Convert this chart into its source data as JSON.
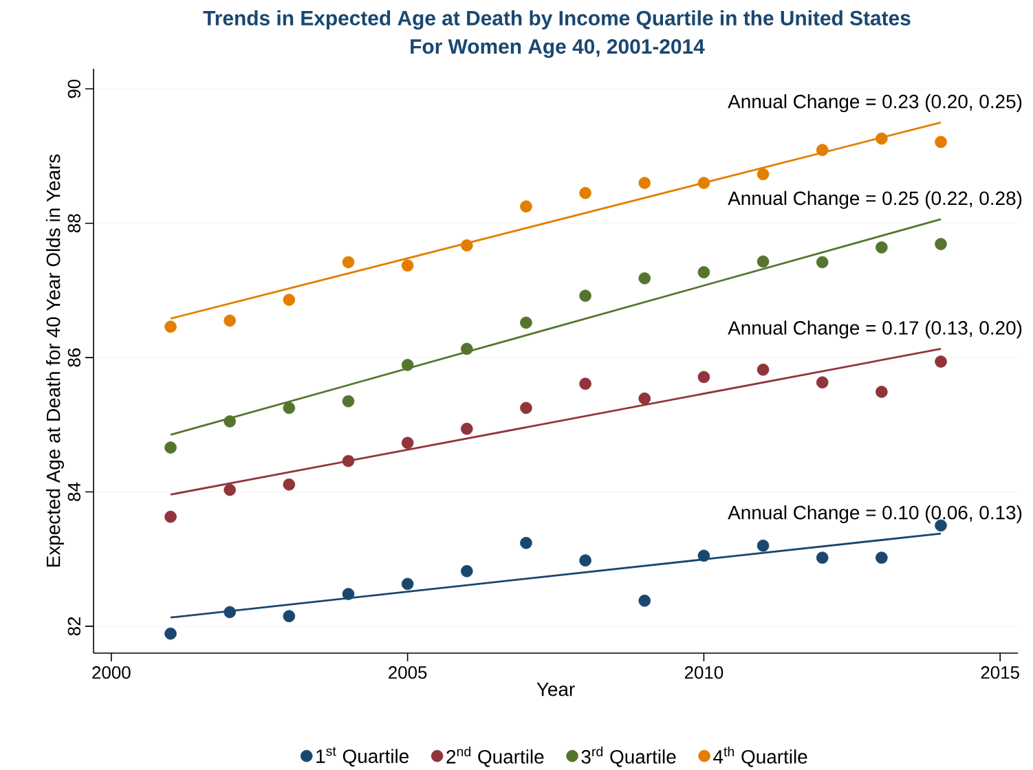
{
  "chart_data": {
    "type": "scatter",
    "title": "Trends in Expected Age at Death by Income Quartile in the United States",
    "subtitle": "For Women Age 40, 2001-2014",
    "xlabel": "Year",
    "ylabel": "Expected Age at Death for 40 Year Olds in Years",
    "xlim": [
      1999.7,
      2015.3
    ],
    "xticks": [
      2000,
      2005,
      2010,
      2015
    ],
    "ylim": [
      81.6,
      90.3
    ],
    "yticks": [
      82,
      84,
      86,
      88,
      90
    ],
    "grid": "y",
    "legend": "bottom",
    "series": [
      {
        "name": "1$^{st}$ Quartile",
        "marker": "circle",
        "color": "#1a476f",
        "x": [
          2001,
          2002,
          2003,
          2004,
          2005,
          2006,
          2007,
          2008,
          2009,
          2010,
          2011,
          2012,
          2013,
          2014
        ],
        "values": [
          81.89,
          82.21,
          82.15,
          82.48,
          82.63,
          82.82,
          83.24,
          82.98,
          82.38,
          83.05,
          83.2,
          83.02,
          83.02,
          83.5
        ]
      },
      {
        "name": "2$^{nd}$ Quartile",
        "marker": "circle",
        "color": "#90353b",
        "x": [
          2001,
          2002,
          2003,
          2004,
          2005,
          2006,
          2007,
          2008,
          2009,
          2010,
          2011,
          2012,
          2013,
          2014
        ],
        "values": [
          83.63,
          84.03,
          84.11,
          84.46,
          84.73,
          84.94,
          85.25,
          85.61,
          85.39,
          85.71,
          85.82,
          85.63,
          85.49,
          85.94
        ]
      },
      {
        "name": "3$^{rd}$ Quartile",
        "marker": "circle",
        "color": "#55752f",
        "x": [
          2001,
          2002,
          2003,
          2004,
          2005,
          2006,
          2007,
          2008,
          2009,
          2010,
          2011,
          2012,
          2013,
          2014
        ],
        "values": [
          84.66,
          85.05,
          85.25,
          85.35,
          85.89,
          86.13,
          86.52,
          86.92,
          87.18,
          87.27,
          87.43,
          87.42,
          87.64,
          87.69
        ]
      },
      {
        "name": "4$^{th}$ Quartile",
        "marker": "circle",
        "color": "#e37e00",
        "x": [
          2001,
          2002,
          2003,
          2004,
          2005,
          2006,
          2007,
          2008,
          2009,
          2010,
          2011,
          2012,
          2013,
          2014
        ],
        "values": [
          86.46,
          86.55,
          86.86,
          87.42,
          87.37,
          87.67,
          88.25,
          88.45,
          88.6,
          88.6,
          88.73,
          89.09,
          89.26,
          89.21
        ]
      },
      {
        "type": "line",
        "marker": "none",
        "color": "#1a476f",
        "x": [
          2001,
          2014
        ],
        "values": [
          82.13,
          83.38
        ]
      },
      {
        "type": "line",
        "marker": "none",
        "color": "#90353b",
        "x": [
          2001,
          2014
        ],
        "values": [
          83.96,
          86.13
        ]
      },
      {
        "type": "line",
        "marker": "none",
        "color": "#55752f",
        "x": [
          2001,
          2014
        ],
        "values": [
          84.85,
          88.06
        ]
      },
      {
        "type": "line",
        "marker": "none",
        "color": "#e37e00",
        "x": [
          2001,
          2014
        ],
        "values": [
          86.58,
          89.5
        ]
      }
    ],
    "annotations": [
      "Annual Change = 0.10 (0.06, 0.13)",
      "Annual Change = 0.17 (0.13, 0.20)",
      "Annual Change = 0.25 (0.22, 0.28)",
      "Annual Change = 0.23 (0.20, 0.25)"
    ]
  }
}
